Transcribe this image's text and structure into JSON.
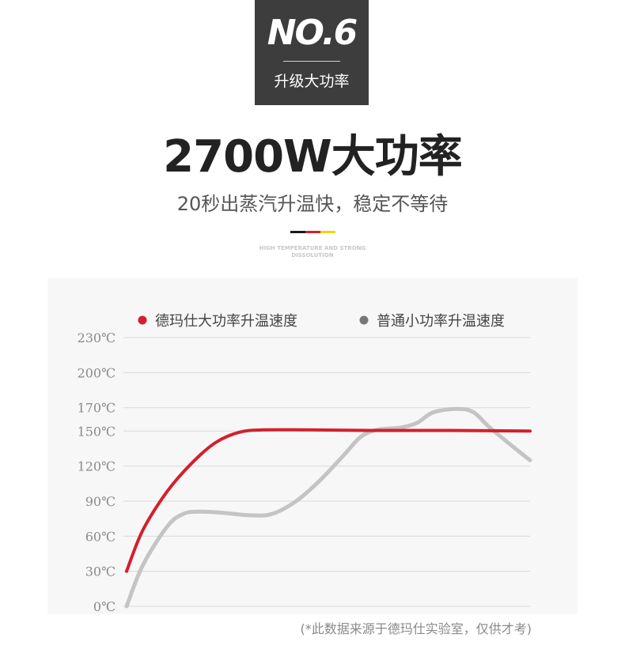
{
  "badge": {
    "number": "NO.6",
    "subtitle": "升级大功率"
  },
  "headline": "2700W大功率",
  "subheadline": "20秒出蒸汽升温快，稳定不等待",
  "colors": {
    "badge_bg": "#3d3d3d",
    "accent_black": "#1a1a1a",
    "accent_red": "#d41f2d",
    "accent_yellow": "#f5d400",
    "grid": "#d9d9d9"
  },
  "tagline": {
    "line1": "HIGH TEMPERATURE AND STRONG",
    "line2": "DISSOLUTION"
  },
  "chart_data": {
    "type": "line",
    "title": "",
    "xlabel": "",
    "ylabel": "",
    "ylim": [
      0,
      230
    ],
    "yticks": [
      0,
      30,
      60,
      90,
      120,
      150,
      170,
      200,
      230
    ],
    "ytick_labels": [
      "0℃",
      "30℃",
      "60℃",
      "90℃",
      "120℃",
      "150℃",
      "170℃",
      "200℃",
      "230℃"
    ],
    "x_range": [
      0,
      100
    ],
    "grid": true,
    "legend_position": "top",
    "series": [
      {
        "name": "德玛仕大功率升温速度",
        "color": "#d41f2d",
        "points": [
          [
            0,
            30
          ],
          [
            4,
            65
          ],
          [
            10,
            98
          ],
          [
            16,
            122
          ],
          [
            22,
            140
          ],
          [
            28,
            149
          ],
          [
            34,
            151
          ],
          [
            45,
            151
          ],
          [
            60,
            150.5
          ],
          [
            80,
            150.5
          ],
          [
            100,
            150
          ]
        ]
      },
      {
        "name": "普通小功率升温速度",
        "color": "#c4c4c4",
        "points": [
          [
            0,
            0
          ],
          [
            4,
            35
          ],
          [
            10,
            68
          ],
          [
            14,
            79
          ],
          [
            18,
            81
          ],
          [
            24,
            80
          ],
          [
            30,
            78
          ],
          [
            36,
            79
          ],
          [
            42,
            90
          ],
          [
            48,
            108
          ],
          [
            54,
            130
          ],
          [
            58,
            145
          ],
          [
            62,
            151
          ],
          [
            68,
            153
          ],
          [
            72,
            157
          ],
          [
            76,
            166
          ],
          [
            82,
            169
          ],
          [
            86,
            166
          ],
          [
            90,
            153
          ],
          [
            96,
            136
          ],
          [
            100,
            125
          ]
        ]
      }
    ]
  },
  "note": "(*此数据来源于德玛仕实验室，仅供才考)"
}
